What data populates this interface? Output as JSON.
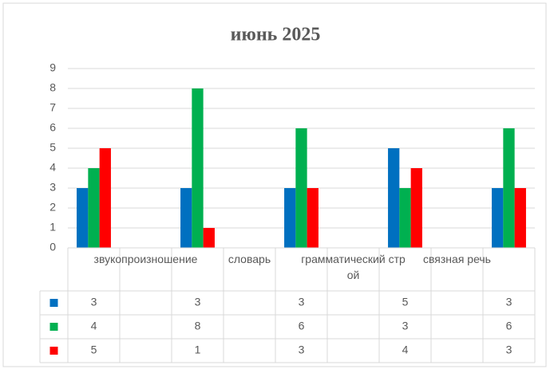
{
  "chart_data": {
    "type": "bar",
    "title": "июнь 2025",
    "categories": [
      null,
      "звукопроизношение",
      null,
      "словарь",
      null,
      "грамматический строй",
      null,
      "связная речь",
      null
    ],
    "series": [
      {
        "color": "#0070c0",
        "values": [
          3,
          null,
          3,
          null,
          3,
          null,
          5,
          null,
          3
        ]
      },
      {
        "color": "#00b050",
        "values": [
          4,
          null,
          8,
          null,
          6,
          null,
          3,
          null,
          6
        ]
      },
      {
        "color": "#ff0000",
        "values": [
          5,
          null,
          1,
          null,
          3,
          null,
          4,
          null,
          3
        ]
      }
    ],
    "ylim": [
      0,
      9
    ],
    "yticks": [
      0,
      1,
      2,
      3,
      4,
      5,
      6,
      7,
      8,
      9
    ],
    "grid": true,
    "data_table": true
  }
}
